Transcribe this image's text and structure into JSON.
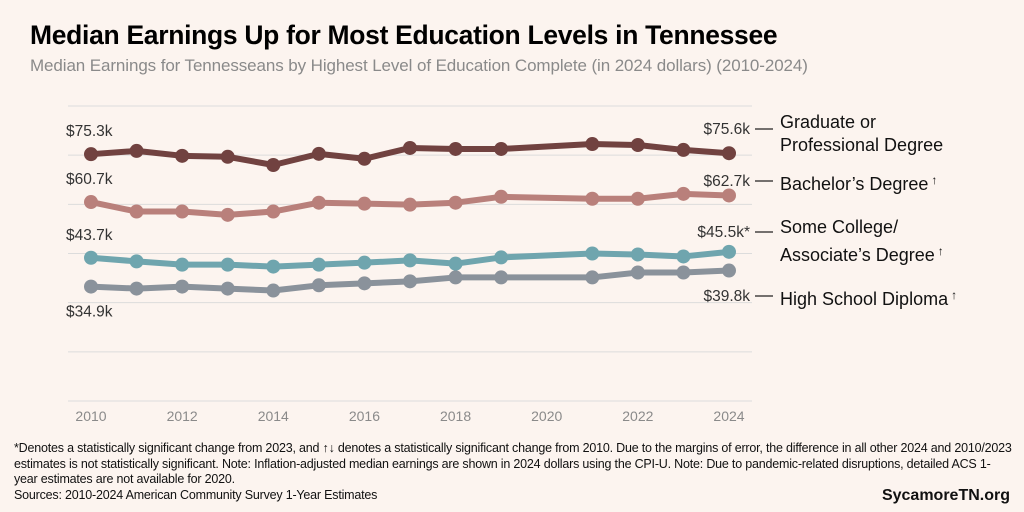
{
  "header": {
    "title": "Median Earnings Up for Most Education Levels in Tennessee",
    "subtitle": "Median Earnings for Tennesseans by Highest Level of Education Complete (in 2024 dollars) (2010-2024)"
  },
  "chart_data": {
    "type": "line",
    "title": "Median Earnings Up for Most Education Levels in Tennessee",
    "subtitle": "Median Earnings for Tennesseans by Highest Level of Education Complete (in 2024 dollars) (2010-2024)",
    "xlabel": "",
    "ylabel": "",
    "x": [
      2010,
      2011,
      2012,
      2013,
      2014,
      2015,
      2016,
      2017,
      2018,
      2019,
      2021,
      2022,
      2023,
      2024
    ],
    "x_ticks": [
      "2010",
      "2012",
      "2014",
      "2016",
      "2018",
      "2020",
      "2022",
      "2024"
    ],
    "xlim": [
      2010,
      2024
    ],
    "ylim": [
      0,
      90
    ],
    "y_gridlines": [
      0,
      15,
      30,
      45,
      60,
      75,
      90
    ],
    "grid": true,
    "units": "thousands of 2024 dollars",
    "legend_position": "right",
    "series": [
      {
        "name": "Graduate or Professional Degree",
        "label_lines": [
          "Graduate or",
          "Professional Degree"
        ],
        "marker": "",
        "color": "#714240",
        "values": [
          75.3,
          76.3,
          74.8,
          74.5,
          72.0,
          75.4,
          73.9,
          77.2,
          76.9,
          76.9,
          78.4,
          78.1,
          76.6,
          75.6
        ],
        "start_label": "$75.3k",
        "end_label": "$75.6k"
      },
      {
        "name": "Bachelor’s Degree",
        "label_lines": [
          "Bachelor’s Degree"
        ],
        "marker": "↑",
        "color": "#b9807b",
        "values": [
          60.7,
          57.8,
          57.8,
          56.8,
          57.8,
          60.5,
          60.2,
          59.9,
          60.5,
          62.3,
          61.7,
          61.7,
          63.2,
          62.7
        ],
        "start_label": "$60.7k",
        "end_label": "$62.7k"
      },
      {
        "name": "Some College/ Associate’s Degree",
        "label_lines": [
          "Some College/",
          "Associate’s Degree"
        ],
        "marker": "↑",
        "color": "#6fa5ae",
        "values": [
          43.7,
          42.6,
          41.6,
          41.6,
          41.0,
          41.6,
          42.2,
          42.9,
          41.9,
          43.8,
          45.0,
          44.7,
          44.1,
          45.5
        ],
        "start_label": "$43.7k",
        "end_label": "$45.5k*"
      },
      {
        "name": "High School Diploma",
        "label_lines": [
          "High School Diploma"
        ],
        "marker": "↑",
        "color": "#8a929b",
        "values": [
          34.9,
          34.3,
          34.9,
          34.3,
          33.7,
          35.3,
          35.9,
          36.5,
          37.7,
          37.7,
          37.7,
          39.2,
          39.2,
          39.8
        ],
        "start_label": "$34.9k",
        "end_label": "$39.8k"
      }
    ]
  },
  "footer": {
    "note": "*Denotes a statistically significant change from 2023, and ↑↓ denotes a statistically significant change from 2010. Due to the margins of error, the difference in all other 2024 and 2010/2023 estimates is not statistically significant. Note: Inflation-adjusted median earnings are shown in 2024 dollars using the CPI-U. Note: Due to pandemic-related disruptions, detailed ACS 1-year estimates are not available for 2020.",
    "sources": "Sources: 2010-2024 American Community Survey 1-Year Estimates",
    "brand": "SycamoreTN.org"
  }
}
